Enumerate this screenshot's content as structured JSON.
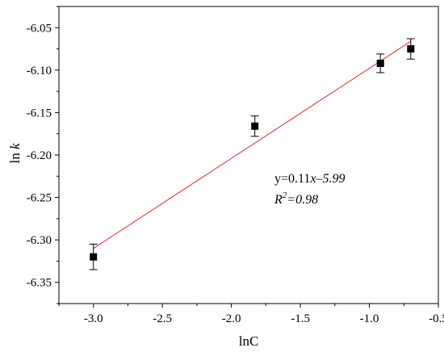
{
  "chart_data": {
    "type": "scatter",
    "xlabel": "lnC",
    "ylabel_main": "ln ",
    "ylabel_var": "k",
    "xlim": [
      -3.25,
      -0.5
    ],
    "ylim": [
      -6.375,
      -6.025
    ],
    "xticks": [
      -3.0,
      -2.5,
      -2.0,
      -1.5,
      -1.0,
      -0.5
    ],
    "xtick_labels": [
      "-3.0",
      "-2.5",
      "-2.0",
      "-1.5",
      "-1.0",
      "-0.5"
    ],
    "yticks": [
      -6.35,
      -6.3,
      -6.25,
      -6.2,
      -6.15,
      -6.1,
      -6.05
    ],
    "ytick_labels": [
      "-6.35",
      "-6.30",
      "-6.25",
      "-6.20",
      "-6.15",
      "-6.10",
      "-6.05"
    ],
    "series": [
      {
        "points": [
          {
            "x": -3.0,
            "y": -6.32,
            "err": 0.015
          },
          {
            "x": -1.83,
            "y": -6.166,
            "err": 0.012
          },
          {
            "x": -0.92,
            "y": -6.092,
            "err": 0.011
          },
          {
            "x": -0.7,
            "y": -6.075,
            "err": 0.012
          }
        ]
      }
    ],
    "fit_line": {
      "x": [
        -3.0,
        -0.7
      ],
      "y": [
        -6.31,
        -6.066
      ],
      "color": "#e8262a"
    },
    "annotation": {
      "eq_prefix": "y=0.11",
      "eq_var": "x",
      "eq_suffix": "–5.99",
      "r2_label": "R",
      "r2_sup": "2",
      "r2_value": "=0.98"
    },
    "grid": false
  }
}
